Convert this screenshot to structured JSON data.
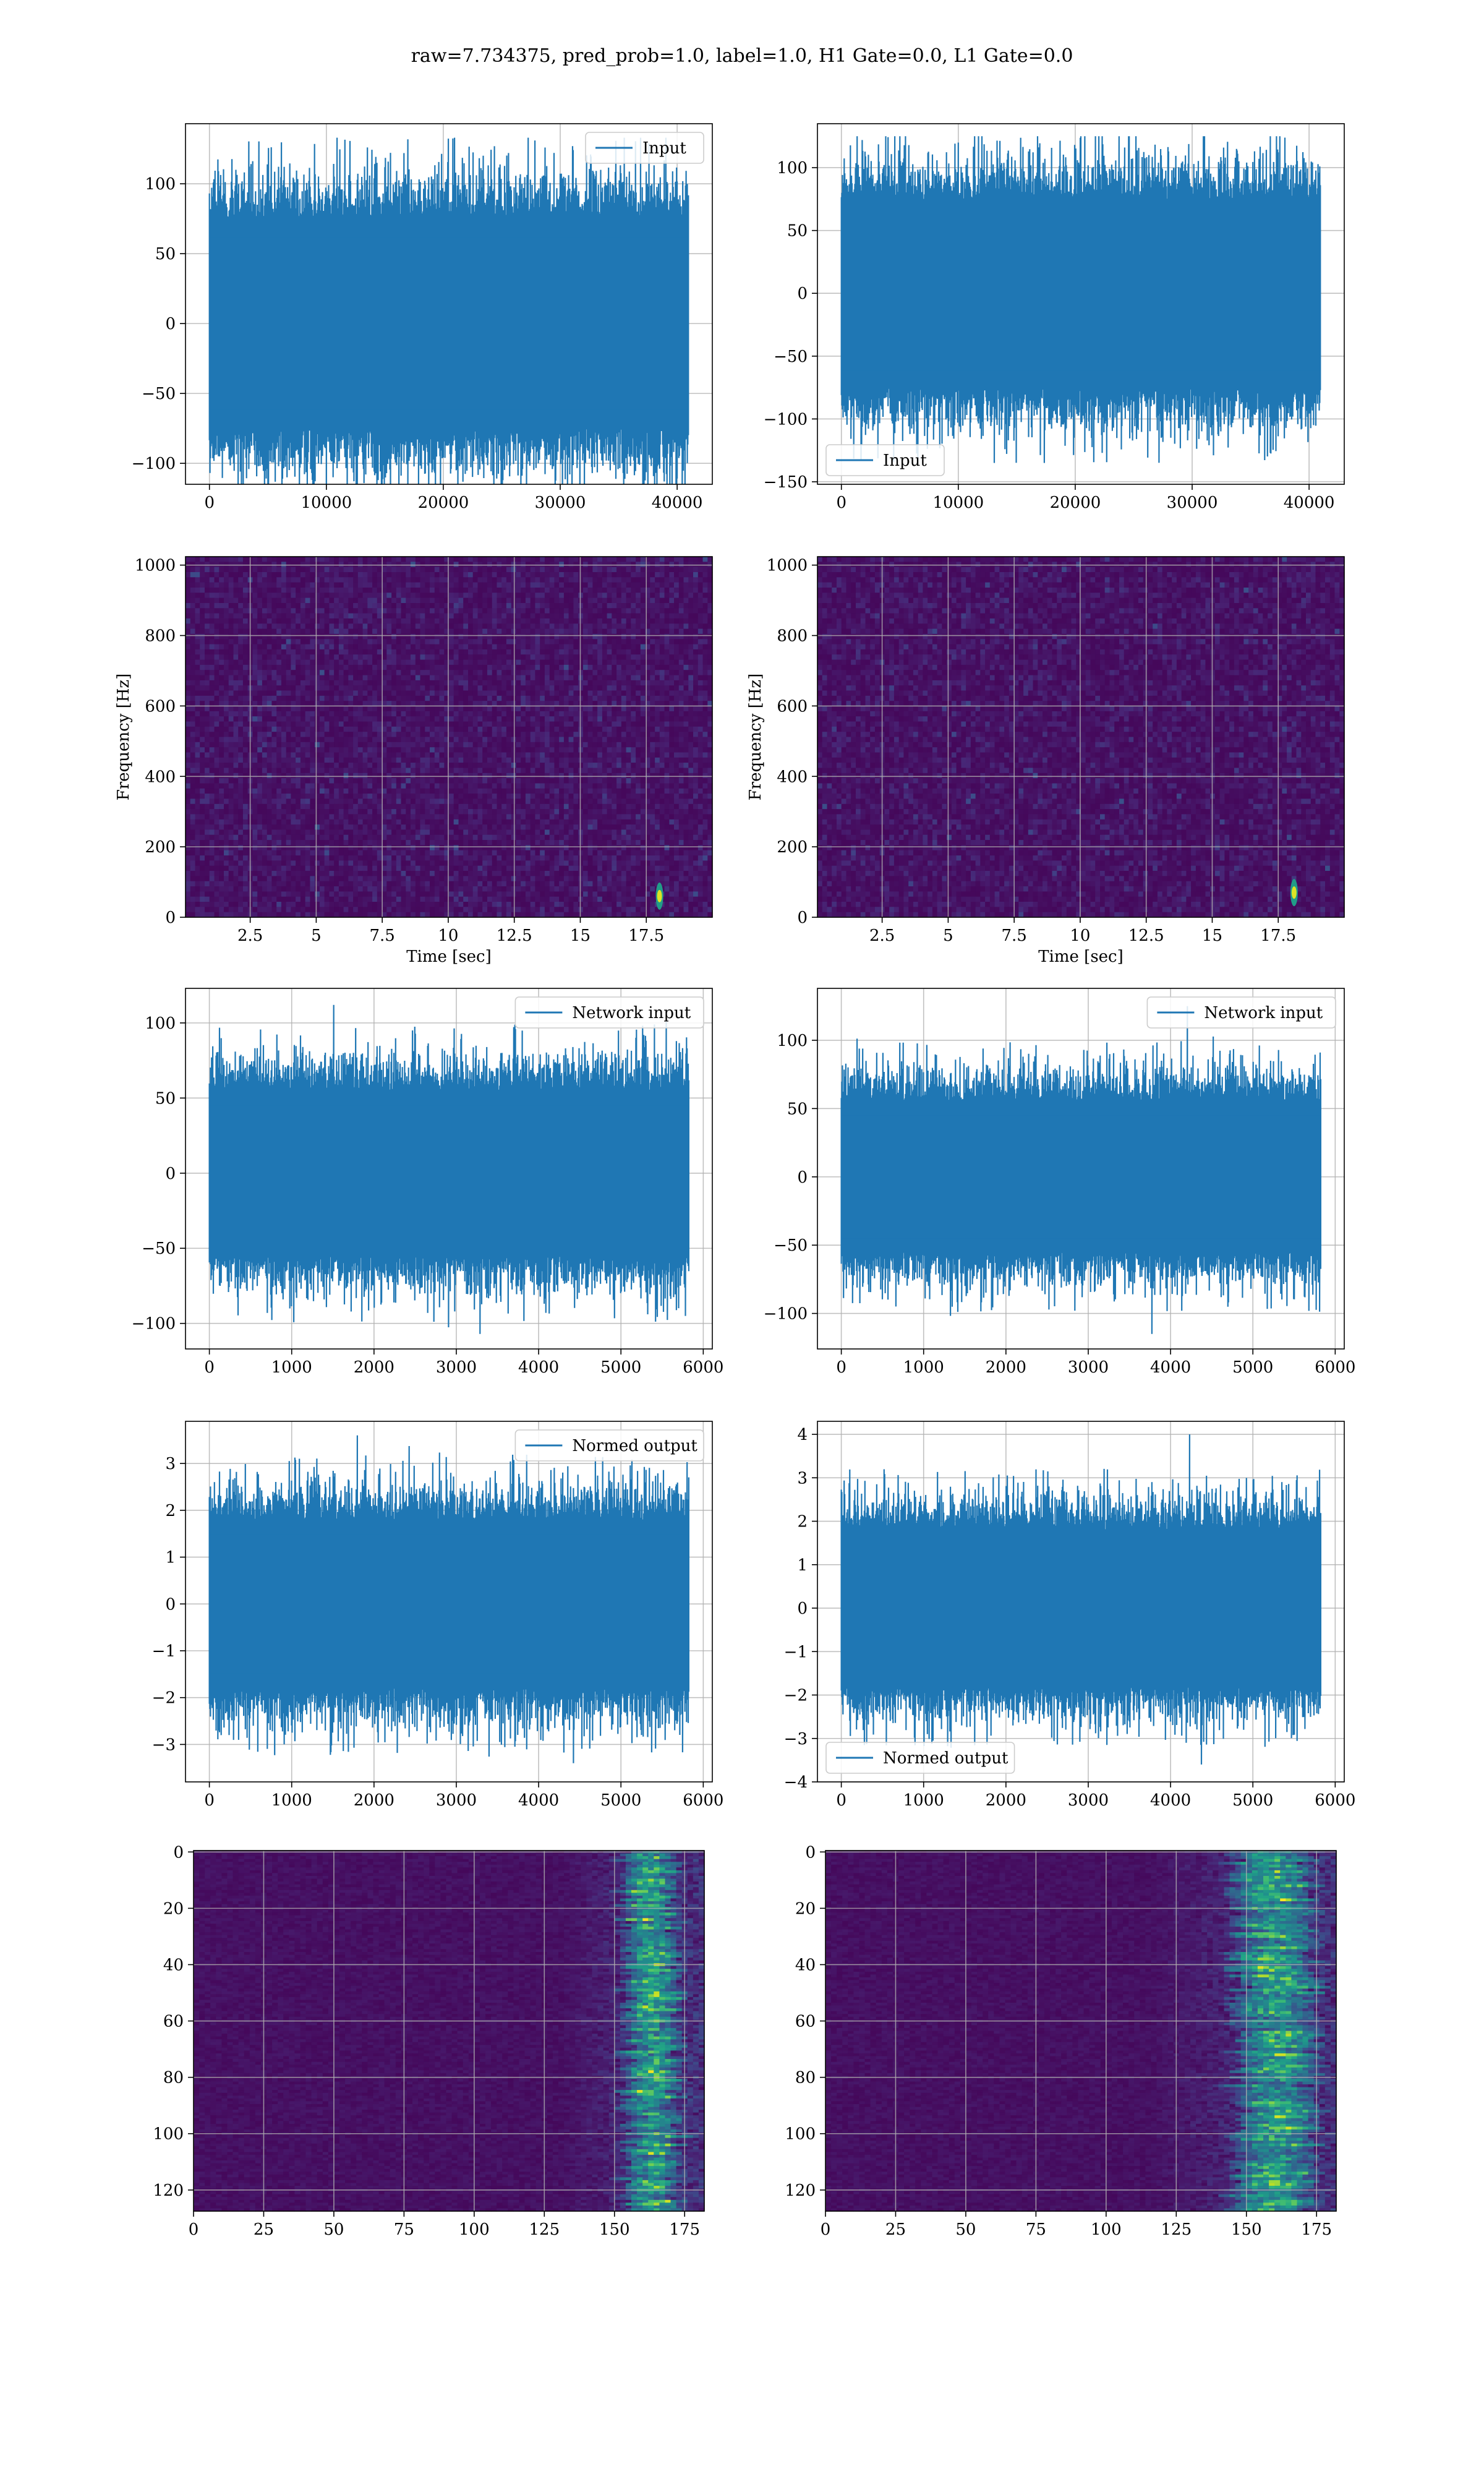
{
  "figure": {
    "suptitle": "raw=7.734375, pred_prob=1.0, label=1.0, H1 Gate=0.0, L1 Gate=0.0"
  },
  "colors": {
    "series": "#1f77b4",
    "grid": "#b0b0b0",
    "viridis_dark": "#440154",
    "viridis_mid": "#21918c",
    "viridis_bright": "#fde725"
  },
  "chart_data": [
    {
      "id": "r0c0",
      "type": "line",
      "title": "",
      "xlabel": "",
      "ylabel": "",
      "xlim": [
        -2048,
        43008
      ],
      "ylim": [
        -115,
        143
      ],
      "xticks": [
        0,
        10000,
        20000,
        30000,
        40000
      ],
      "yticks": [
        -100,
        -50,
        0,
        50,
        100
      ],
      "legend": {
        "label": "Input",
        "position": "upper right"
      },
      "series": [
        {
          "name": "Input",
          "n_samples": 40960,
          "x_range": [
            0,
            40960
          ],
          "approx_min": -125,
          "approx_max": 133,
          "typical_envelope": 75
        }
      ]
    },
    {
      "id": "r0c1",
      "type": "line",
      "title": "",
      "xlabel": "",
      "ylabel": "",
      "xlim": [
        -2048,
        43008
      ],
      "ylim": [
        -152,
        135
      ],
      "xticks": [
        0,
        10000,
        20000,
        30000,
        40000
      ],
      "yticks": [
        -150,
        -100,
        -50,
        0,
        50,
        100
      ],
      "legend": {
        "label": "Input",
        "position": "lower left"
      },
      "series": [
        {
          "name": "Input",
          "n_samples": 40960,
          "x_range": [
            0,
            40960
          ],
          "approx_min": -135,
          "approx_max": 125,
          "typical_envelope": 75
        }
      ]
    },
    {
      "id": "r1c0",
      "type": "heatmap",
      "title": "",
      "xlabel": "Time [sec]",
      "ylabel": "Frequency [Hz]",
      "xlim": [
        0.05,
        20.0
      ],
      "ylim": [
        0,
        1024
      ],
      "xticks": [
        2.5,
        5.0,
        7.5,
        10.0,
        12.5,
        15.0,
        17.5
      ],
      "yticks": [
        0,
        200,
        400,
        600,
        800,
        1000
      ],
      "colormap": "viridis",
      "hotspots": [
        {
          "t": 18.0,
          "f": 60,
          "note": "bright blip"
        }
      ]
    },
    {
      "id": "r1c1",
      "type": "heatmap",
      "title": "",
      "xlabel": "Time [sec]",
      "ylabel": "Frequency [Hz]",
      "xlim": [
        0.05,
        20.0
      ],
      "ylim": [
        0,
        1024
      ],
      "xticks": [
        2.5,
        5.0,
        7.5,
        10.0,
        12.5,
        15.0,
        17.5
      ],
      "yticks": [
        0,
        200,
        400,
        600,
        800,
        1000
      ],
      "colormap": "viridis",
      "hotspots": [
        {
          "t": 18.1,
          "f": 70,
          "note": "bright blip"
        }
      ]
    },
    {
      "id": "r2c0",
      "type": "line",
      "title": "",
      "xlabel": "",
      "ylabel": "",
      "xlim": [
        -290,
        6110
      ],
      "ylim": [
        -117,
        123
      ],
      "xticks": [
        0,
        1000,
        2000,
        3000,
        4000,
        5000,
        6000
      ],
      "yticks": [
        -100,
        -50,
        0,
        50,
        100
      ],
      "legend": {
        "label": "Network input",
        "position": "upper right"
      },
      "series": [
        {
          "name": "Network input",
          "n_samples": 5824,
          "x_range": [
            0,
            5824
          ],
          "approx_min": -107,
          "approx_max": 112,
          "typical_envelope": 55
        }
      ]
    },
    {
      "id": "r2c1",
      "type": "line",
      "title": "",
      "xlabel": "",
      "ylabel": "",
      "xlim": [
        -290,
        6110
      ],
      "ylim": [
        -126,
        138
      ],
      "xticks": [
        0,
        1000,
        2000,
        3000,
        4000,
        5000,
        6000
      ],
      "yticks": [
        -100,
        -50,
        0,
        50,
        100
      ],
      "legend": {
        "label": "Network input",
        "position": "upper right"
      },
      "series": [
        {
          "name": "Network input",
          "n_samples": 5824,
          "x_range": [
            0,
            5824
          ],
          "approx_min": -115,
          "approx_max": 125,
          "typical_envelope": 55
        }
      ]
    },
    {
      "id": "r3c0",
      "type": "line",
      "title": "",
      "xlabel": "",
      "ylabel": "",
      "xlim": [
        -290,
        6110
      ],
      "ylim": [
        -3.8,
        3.9
      ],
      "xticks": [
        0,
        1000,
        2000,
        3000,
        4000,
        5000,
        6000
      ],
      "yticks": [
        -3,
        -2,
        -1,
        0,
        1,
        2,
        3
      ],
      "legend": {
        "label": "Normed output",
        "position": "upper right"
      },
      "series": [
        {
          "name": "Normed output",
          "n_samples": 5824,
          "x_range": [
            0,
            5824
          ],
          "approx_min": -3.4,
          "approx_max": 3.6,
          "typical_envelope": 1.8
        }
      ]
    },
    {
      "id": "r3c1",
      "type": "line",
      "title": "",
      "xlabel": "",
      "ylabel": "",
      "xlim": [
        -290,
        6110
      ],
      "ylim": [
        -4.0,
        4.3
      ],
      "xticks": [
        0,
        1000,
        2000,
        3000,
        4000,
        5000,
        6000
      ],
      "yticks": [
        -4,
        -3,
        -2,
        -1,
        0,
        1,
        2,
        3,
        4
      ],
      "legend": {
        "label": "Normed output",
        "position": "lower left"
      },
      "series": [
        {
          "name": "Normed output",
          "n_samples": 5824,
          "x_range": [
            0,
            5824
          ],
          "approx_min": -3.6,
          "approx_max": 4.0,
          "typical_envelope": 1.8
        }
      ]
    },
    {
      "id": "r4c0",
      "type": "heatmap",
      "title": "",
      "xlabel": "",
      "ylabel": "",
      "xlim": [
        0,
        182
      ],
      "ylim": [
        127.5,
        -0.5
      ],
      "y_inverted": true,
      "xticks": [
        0,
        25,
        50,
        75,
        100,
        125,
        150,
        175
      ],
      "yticks": [
        0,
        20,
        40,
        60,
        80,
        100,
        120
      ],
      "colormap": "viridis",
      "n_rows": 128,
      "n_cols": 182,
      "activity": {
        "onset_col": 130,
        "peak_col": 162,
        "peak_width": 6
      }
    },
    {
      "id": "r4c1",
      "type": "heatmap",
      "title": "",
      "xlabel": "",
      "ylabel": "",
      "xlim": [
        0,
        182
      ],
      "ylim": [
        127.5,
        -0.5
      ],
      "y_inverted": true,
      "xticks": [
        0,
        25,
        50,
        75,
        100,
        125,
        150,
        175
      ],
      "yticks": [
        0,
        20,
        40,
        60,
        80,
        100,
        120
      ],
      "colormap": "viridis",
      "n_rows": 128,
      "n_cols": 182,
      "activity": {
        "onset_col": 115,
        "peak_col": 159,
        "peak_width": 9
      }
    }
  ]
}
